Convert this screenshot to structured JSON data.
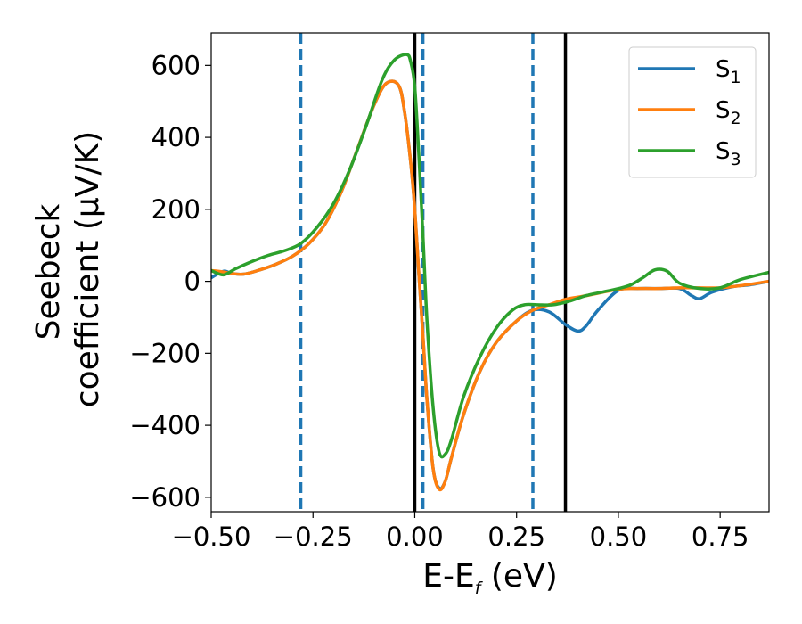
{
  "chart_data": {
    "type": "line",
    "xlabel": "E-E",
    "xlabel_sub": "f",
    "xlabel_unit": " (eV)",
    "ylabel_line1": "Seebeck",
    "ylabel_line2": "coefficient  (μV/K)",
    "xlim": [
      -0.5,
      0.87
    ],
    "ylim": [
      -640,
      690
    ],
    "xticks": [
      -0.5,
      -0.25,
      0.0,
      0.25,
      0.5,
      0.75
    ],
    "xtick_labels": [
      "−0.50",
      "−0.25",
      "0.00",
      "0.25",
      "0.50",
      "0.75"
    ],
    "yticks": [
      -600,
      -400,
      -200,
      0,
      200,
      400,
      600
    ],
    "ytick_labels": [
      "−600",
      "−400",
      "−200",
      "0",
      "200",
      "400",
      "600"
    ],
    "legend_position": "top-right",
    "series": [
      {
        "name": "S",
        "sub": "1",
        "color": "#1f77b4",
        "x": [
          -0.5,
          -0.47,
          -0.45,
          -0.42,
          -0.38,
          -0.34,
          -0.3,
          -0.26,
          -0.22,
          -0.18,
          -0.14,
          -0.1,
          -0.07,
          -0.04,
          -0.025,
          -0.01,
          0.0,
          0.01,
          0.02,
          0.03,
          0.045,
          0.06,
          0.075,
          0.09,
          0.12,
          0.16,
          0.2,
          0.25,
          0.29,
          0.33,
          0.37,
          0.4,
          0.42,
          0.45,
          0.5,
          0.55,
          0.6,
          0.65,
          0.68,
          0.7,
          0.73,
          0.78,
          0.82,
          0.87
        ],
        "y": [
          10,
          28,
          22,
          20,
          32,
          48,
          70,
          105,
          160,
          250,
          370,
          490,
          550,
          545,
          470,
          330,
          200,
          20,
          -150,
          -330,
          -520,
          -575,
          -555,
          -490,
          -370,
          -250,
          -170,
          -110,
          -80,
          -85,
          -120,
          -138,
          -125,
          -80,
          -25,
          -20,
          -20,
          -20,
          -40,
          -48,
          -30,
          -15,
          -10,
          0
        ]
      },
      {
        "name": "S",
        "sub": "2",
        "color": "#ff7f0e",
        "x": [
          -0.5,
          -0.47,
          -0.45,
          -0.42,
          -0.38,
          -0.34,
          -0.3,
          -0.26,
          -0.22,
          -0.18,
          -0.14,
          -0.1,
          -0.07,
          -0.04,
          -0.025,
          -0.01,
          0.0,
          0.01,
          0.02,
          0.03,
          0.045,
          0.06,
          0.075,
          0.09,
          0.12,
          0.16,
          0.2,
          0.25,
          0.29,
          0.33,
          0.37,
          0.42,
          0.5,
          0.55,
          0.6,
          0.65,
          0.7,
          0.75,
          0.8,
          0.87
        ],
        "y": [
          30,
          26,
          22,
          20,
          32,
          48,
          70,
          105,
          160,
          250,
          370,
          490,
          550,
          545,
          470,
          330,
          200,
          20,
          -150,
          -330,
          -520,
          -578,
          -555,
          -490,
          -370,
          -250,
          -170,
          -110,
          -80,
          -65,
          -50,
          -40,
          -22,
          -20,
          -20,
          -18,
          -18,
          -18,
          -12,
          0
        ]
      },
      {
        "name": "S",
        "sub": "3",
        "color": "#2ca02c",
        "x": [
          -0.5,
          -0.47,
          -0.44,
          -0.4,
          -0.36,
          -0.32,
          -0.28,
          -0.24,
          -0.2,
          -0.16,
          -0.12,
          -0.08,
          -0.05,
          -0.02,
          -0.01,
          0.0,
          0.01,
          0.02,
          0.03,
          0.045,
          0.06,
          0.075,
          0.09,
          0.12,
          0.16,
          0.2,
          0.24,
          0.27,
          0.3,
          0.34,
          0.38,
          0.42,
          0.46,
          0.5,
          0.53,
          0.56,
          0.59,
          0.62,
          0.65,
          0.7,
          0.75,
          0.8,
          0.87
        ],
        "y": [
          30,
          18,
          35,
          55,
          72,
          85,
          105,
          150,
          215,
          310,
          430,
          560,
          615,
          630,
          610,
          540,
          350,
          130,
          -110,
          -350,
          -475,
          -480,
          -440,
          -320,
          -210,
          -130,
          -80,
          -65,
          -65,
          -65,
          -55,
          -40,
          -30,
          -20,
          -10,
          10,
          32,
          28,
          -5,
          -20,
          -18,
          5,
          25
        ]
      }
    ],
    "vlines": [
      {
        "x": -0.28,
        "style": "dashed",
        "color": "#1f77b4"
      },
      {
        "x": 0.02,
        "style": "dashed",
        "color": "#1f77b4"
      },
      {
        "x": 0.29,
        "style": "dashed",
        "color": "#1f77b4"
      },
      {
        "x": 0.0,
        "style": "solid",
        "color": "#000000"
      },
      {
        "x": 0.37,
        "style": "solid",
        "color": "#000000"
      }
    ]
  }
}
